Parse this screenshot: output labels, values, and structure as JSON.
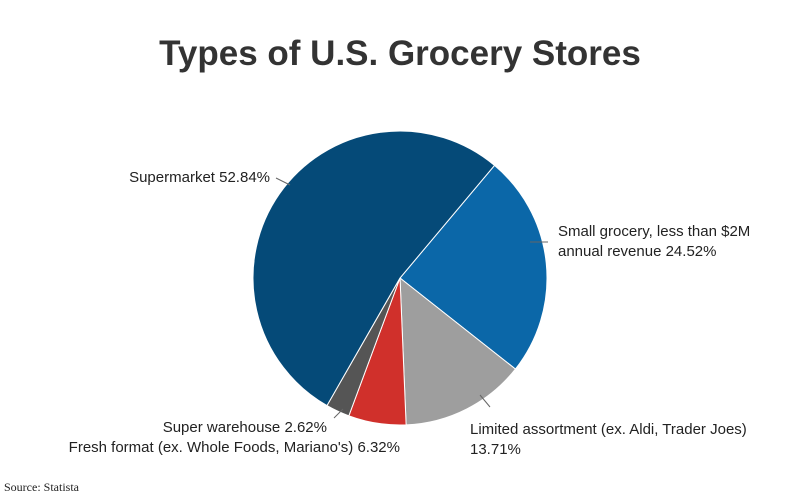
{
  "chart_data": {
    "type": "pie",
    "title": "Types of U.S. Grocery Stores",
    "categories": [
      "Small grocery, less than $2M annual revenue",
      "Limited assortment (ex. Aldi, Trader Joes)",
      "Fresh format (ex. Whole Foods, Mariano's)",
      "Super warehouse",
      "Supermarket"
    ],
    "values": [
      24.52,
      13.71,
      6.32,
      2.62,
      52.84
    ],
    "value_labels": [
      "24.52%",
      "13.71%",
      "6.32%",
      "2.62%",
      "52.84%"
    ],
    "colors": [
      "#0b67a8",
      "#9e9e9e",
      "#d0302b",
      "#555555",
      "#054a78"
    ],
    "source": "Source: Statista"
  }
}
